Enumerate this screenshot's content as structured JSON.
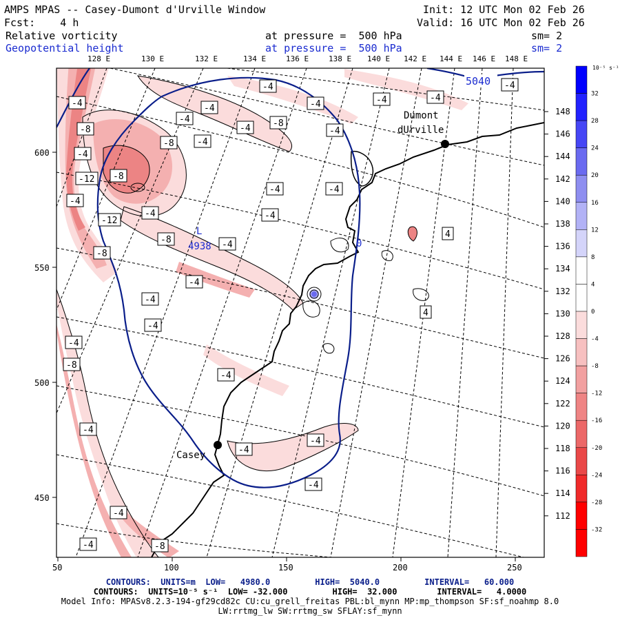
{
  "header": {
    "title": "AMPS MPAS -- Casey-Dumont d'Urville Window",
    "init": "Init: 12 UTC Mon 02 Feb 26",
    "fcst": "Fcst:    4 h",
    "valid": "Valid: 16 UTC Mon 02 Feb 26",
    "field1_name": "Relative vorticity",
    "field1_level": "at pressure =  500 hPa",
    "field1_sm": "sm= 2",
    "field2_name": "Geopotential height",
    "field2_level": "at pressure =  500 hPa",
    "field2_sm": "sm= 2"
  },
  "top_axis": [
    "128 E",
    "130 E",
    "132 E",
    "134 E",
    "136 E",
    "138 E",
    "140 E",
    "142 E",
    "144 E",
    "146 E",
    "148 E"
  ],
  "right_axis": [
    "148 E",
    "146 E",
    "144 E",
    "142 E",
    "140 E",
    "138 E",
    "136 E",
    "134 E",
    "132 E",
    "130 E",
    "128 E",
    "126 E",
    "124 E",
    "122 E",
    "120 E",
    "118 E",
    "116 E",
    "114 E",
    "112 E"
  ],
  "left_axis": [
    "600",
    "550",
    "500",
    "450"
  ],
  "bottom_axis": [
    "50",
    "100",
    "150",
    "200",
    "250"
  ],
  "stations": {
    "casey": "Casey",
    "dumont_line1": "Dumont",
    "dumont_line2": "dUrville"
  },
  "height_contours": {
    "label_5040": "5040",
    "label_4938": "4938",
    "low_marker": "L"
  },
  "vorticity_labels": [
    "-4",
    "-8",
    "-12",
    "4",
    "0"
  ],
  "colorbar": {
    "unit": "10^-5 s^-1",
    "unit_display": "10⁻⁵ s⁻¹",
    "ticks": [
      "32",
      "28",
      "24",
      "20",
      "16",
      "12",
      "8",
      "4",
      "0",
      "-4",
      "-8",
      "-12",
      "-16",
      "-20",
      "-24",
      "-28",
      "-32"
    ],
    "colors": [
      "#0000ff",
      "#2222ff",
      "#4646f5",
      "#6a6af0",
      "#8e8ef0",
      "#b2b2f6",
      "#d4d4fa",
      "#ffffff",
      "#ffffff",
      "#fbdcdc",
      "#f7c0c0",
      "#f2a0a0",
      "#ef8484",
      "#ec6868",
      "#ea4848",
      "#f02a2a",
      "#ff0000"
    ]
  },
  "footer": {
    "line1": "CONTOURS:  UNITS=m  LOW=   4980.0         HIGH=  5040.0         INTERVAL=   60.000",
    "line2": "CONTOURS:  UNITS=10⁻⁵ s⁻¹  LOW= -32.000         HIGH=  32.000        INTERVAL=   4.0000",
    "line3": "Model Info: MPASv8.2.3-194-gf29cd82c CU:cu_grell_freitas PBL:bl_mynn MP:mp_thompson SF:sf_noahmp 8.0",
    "line4": "LW:rrtmg_lw SW:rrtmg_sw SFLAY:sf_mynn"
  },
  "colors": {
    "navy": "#0a1e8a",
    "blue_text": "#1a2bd0",
    "pink_light": "#fbdcdc",
    "pink_mid": "#f2a0a0",
    "red": "#ff0000",
    "blue": "#0000ff"
  }
}
